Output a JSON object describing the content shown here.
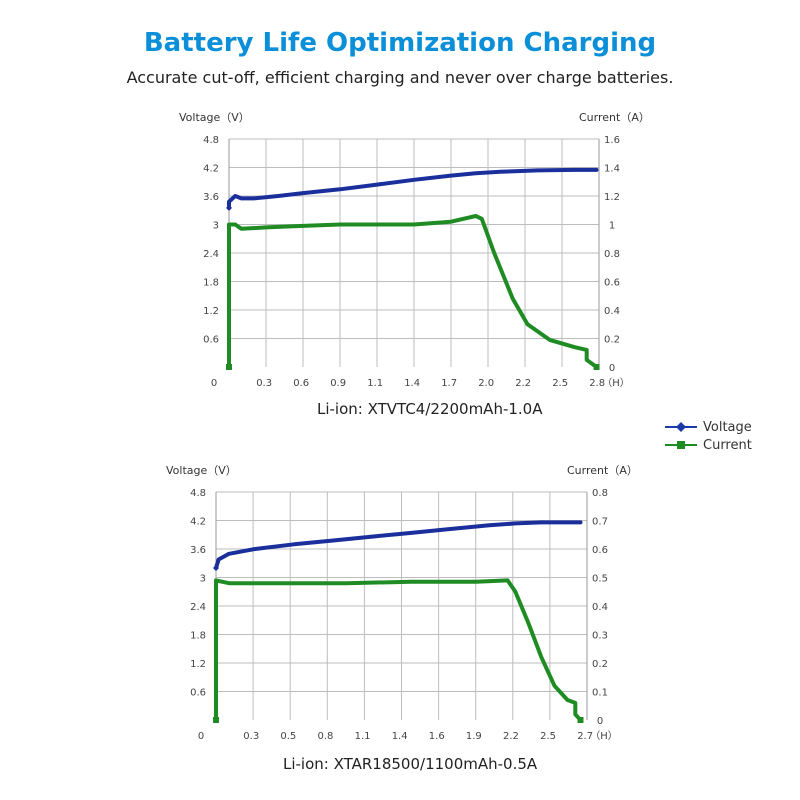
{
  "header": {
    "title": "Battery Life Optimization Charging",
    "subtitle": "Accurate cut-off, efficient charging and never over charge batteries."
  },
  "colors": {
    "voltage": "#1a2f9c",
    "current": "#1f8c23",
    "grid": "#bdbdbd",
    "title": "#0a8fd8"
  },
  "legend": [
    {
      "label": "Voltage",
      "marker": "diamond",
      "color": "#1a3aa8"
    },
    {
      "label": "Current",
      "marker": "square",
      "color": "#1f8c23"
    }
  ],
  "chart_data": [
    {
      "type": "line",
      "title": "Li-ion: XTVTC4/2200mAh-1.0A",
      "ylabel_left": "Voltage（V）",
      "ylabel_right": "Current（A）",
      "x_unit": "（H）",
      "x_origin_label": "0",
      "x_tick_labels": [
        "0.3",
        "0.6",
        "0.9",
        "1.1",
        "1.4",
        "1.7",
        "2.0",
        "2.2",
        "2.5",
        "2.8"
      ],
      "y_left_ticks": [
        "0.6",
        "1.2",
        "1.8",
        "2.4",
        "3",
        "3.6",
        "4.2",
        "4.8"
      ],
      "y_right_ticks": [
        "0",
        "0.2",
        "0.4",
        "0.6",
        "0.8",
        "1",
        "1.2",
        "1.4",
        "1.6"
      ],
      "ylim_left": [
        0,
        4.8
      ],
      "ylim_right": [
        0,
        1.6
      ],
      "xlim": [
        0,
        3.0
      ],
      "grid": true,
      "series": [
        {
          "name": "Voltage",
          "axis": "left",
          "points": [
            [
              0.0,
              3.35
            ],
            [
              0.0,
              3.48
            ],
            [
              0.05,
              3.6
            ],
            [
              0.1,
              3.55
            ],
            [
              0.2,
              3.55
            ],
            [
              0.4,
              3.6
            ],
            [
              0.6,
              3.66
            ],
            [
              0.9,
              3.74
            ],
            [
              1.2,
              3.84
            ],
            [
              1.5,
              3.94
            ],
            [
              1.8,
              4.03
            ],
            [
              2.0,
              4.08
            ],
            [
              2.2,
              4.11
            ],
            [
              2.5,
              4.14
            ],
            [
              2.8,
              4.15
            ],
            [
              2.98,
              4.15
            ]
          ]
        },
        {
          "name": "Current",
          "axis": "right",
          "points": [
            [
              0.0,
              0.0
            ],
            [
              0.0,
              1.0
            ],
            [
              0.05,
              1.0
            ],
            [
              0.1,
              0.97
            ],
            [
              0.3,
              0.98
            ],
            [
              0.6,
              0.99
            ],
            [
              0.9,
              1.0
            ],
            [
              1.2,
              1.0
            ],
            [
              1.5,
              1.0
            ],
            [
              1.8,
              1.02
            ],
            [
              2.0,
              1.06
            ],
            [
              2.05,
              1.04
            ],
            [
              2.15,
              0.8
            ],
            [
              2.3,
              0.48
            ],
            [
              2.42,
              0.3
            ],
            [
              2.6,
              0.19
            ],
            [
              2.8,
              0.14
            ],
            [
              2.9,
              0.12
            ],
            [
              2.9,
              0.05
            ],
            [
              2.98,
              0.0
            ]
          ]
        }
      ]
    },
    {
      "type": "line",
      "title": "Li-ion: XTAR18500/1100mAh-0.5A",
      "ylabel_left": "Voltage（V）",
      "ylabel_right": "Current（A）",
      "x_unit": "（H）",
      "x_origin_label": "0",
      "x_tick_labels": [
        "0.3",
        "0.5",
        "0.8",
        "1.1",
        "1.4",
        "1.6",
        "1.9",
        "2.2",
        "2.5",
        "2.7"
      ],
      "y_left_ticks": [
        "0.6",
        "1.2",
        "1.8",
        "2.4",
        "3",
        "3.6",
        "4.2",
        "4.8"
      ],
      "y_right_ticks": [
        "0",
        "0.1",
        "0.2",
        "0.3",
        "0.4",
        "0.5",
        "0.6",
        "0.7",
        "0.8"
      ],
      "ylim_left": [
        0,
        4.8
      ],
      "ylim_right": [
        0,
        0.8
      ],
      "xlim": [
        0,
        2.85
      ],
      "grid": true,
      "series": [
        {
          "name": "Voltage",
          "axis": "left",
          "points": [
            [
              0.0,
              3.2
            ],
            [
              0.02,
              3.38
            ],
            [
              0.1,
              3.5
            ],
            [
              0.3,
              3.6
            ],
            [
              0.6,
              3.7
            ],
            [
              0.9,
              3.78
            ],
            [
              1.2,
              3.86
            ],
            [
              1.5,
              3.94
            ],
            [
              1.8,
              4.02
            ],
            [
              2.1,
              4.1
            ],
            [
              2.3,
              4.14
            ],
            [
              2.5,
              4.16
            ],
            [
              2.7,
              4.16
            ],
            [
              2.8,
              4.16
            ]
          ]
        },
        {
          "name": "Current",
          "axis": "right",
          "points": [
            [
              0.0,
              0.0
            ],
            [
              0.0,
              0.49
            ],
            [
              0.1,
              0.48
            ],
            [
              0.5,
              0.48
            ],
            [
              1.0,
              0.48
            ],
            [
              1.5,
              0.485
            ],
            [
              2.0,
              0.485
            ],
            [
              2.24,
              0.49
            ],
            [
              2.3,
              0.45
            ],
            [
              2.4,
              0.34
            ],
            [
              2.5,
              0.22
            ],
            [
              2.6,
              0.12
            ],
            [
              2.7,
              0.07
            ],
            [
              2.76,
              0.06
            ],
            [
              2.76,
              0.02
            ],
            [
              2.8,
              0.0
            ]
          ]
        }
      ]
    }
  ]
}
